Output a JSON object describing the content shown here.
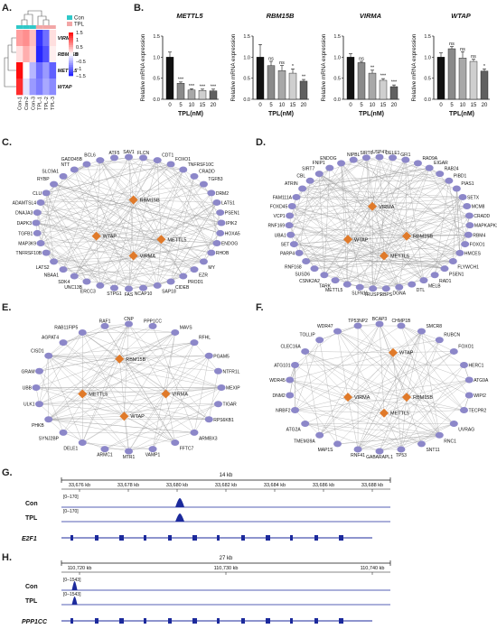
{
  "panels": [
    "A.",
    "B.",
    "C.",
    "D.",
    "E.",
    "F.",
    "G.",
    "H."
  ],
  "heatmap": {
    "legend": [
      {
        "label": "Con",
        "color": "#2fc8c8"
      },
      {
        "label": "TPL",
        "color": "#f2a6a6"
      }
    ],
    "scale_ticks": [
      "1.5",
      "1",
      "0.5",
      "0",
      "−0.5",
      "−1",
      "−1.5"
    ],
    "rows": [
      "VIRMA",
      "RBM15B",
      "METTL5",
      "WTAP"
    ],
    "cols": [
      "Con-1",
      "Con-2",
      "Con-3",
      "TPL-1",
      "TPL-2",
      "TPL-3"
    ],
    "values": [
      [
        0.6,
        0.7,
        0.4,
        -1.4,
        -1.0,
        0.2
      ],
      [
        0.2,
        0.5,
        0.3,
        -1.5,
        -1.2,
        0.1
      ],
      [
        1.5,
        0.0,
        -0.5,
        -1.0,
        -0.7,
        -1.1
      ],
      [
        1.3,
        -0.2,
        -0.7,
        -0.9,
        -0.6,
        -0.8
      ]
    ]
  },
  "chart_data": [
    {
      "type": "bar",
      "title": "METTL5",
      "categories": [
        "0",
        "5",
        "10",
        "15",
        "20"
      ],
      "values": [
        1.0,
        0.38,
        0.22,
        0.21,
        0.2
      ],
      "errors": [
        0.12,
        0.03,
        0.03,
        0.03,
        0.04
      ],
      "sig": [
        "",
        "***",
        "***",
        "***",
        "***"
      ],
      "xlabel": "TPL(nM)",
      "ylabel": "Relative mRNA expression",
      "ylim": [
        0,
        1.5
      ],
      "yticks": [
        "0.0",
        "0.5",
        "1.0",
        "1.5"
      ]
    },
    {
      "type": "bar",
      "title": "RBM15B",
      "categories": [
        "0",
        "5",
        "10",
        "15",
        "20"
      ],
      "values": [
        1.0,
        0.8,
        0.68,
        0.62,
        0.43
      ],
      "errors": [
        0.3,
        0.1,
        0.12,
        0.1,
        0.04
      ],
      "sig": [
        "",
        "ns",
        "ns",
        "*",
        "**"
      ],
      "xlabel": "TPL(nM)",
      "ylabel": "Relative mRNA expression",
      "ylim": [
        0,
        1.5
      ],
      "yticks": [
        "0.0",
        "0.5",
        "1.0",
        "1.5"
      ]
    },
    {
      "type": "bar",
      "title": "VIRMA",
      "categories": [
        "0",
        "5",
        "10",
        "15",
        "20"
      ],
      "values": [
        1.0,
        0.87,
        0.62,
        0.45,
        0.3
      ],
      "errors": [
        0.08,
        0.03,
        0.07,
        0.04,
        0.04
      ],
      "sig": [
        "",
        "ns",
        "**",
        "***",
        "***"
      ],
      "xlabel": "TPL(nM)",
      "ylabel": "Relative mRNA expression",
      "ylim": [
        0,
        1.5
      ],
      "yticks": [
        "0.0",
        "0.5",
        "1.0",
        "1.5"
      ]
    },
    {
      "type": "bar",
      "title": "WTAP",
      "categories": [
        "0",
        "5",
        "10",
        "15",
        "20"
      ],
      "values": [
        1.0,
        1.2,
        0.98,
        0.9,
        0.67
      ],
      "errors": [
        0.1,
        0.05,
        0.15,
        0.05,
        0.05
      ],
      "sig": [
        "",
        "ns",
        "ns",
        "ns",
        "*"
      ],
      "xlabel": "TPL(nM)",
      "ylabel": "Relative mRNA expression",
      "ylim": [
        0,
        1.5
      ],
      "yticks": [
        "0.0",
        "0.5",
        "1.0",
        "1.5"
      ]
    }
  ],
  "networks": {
    "C": {
      "hubs": [
        "RBM15B",
        "WTAP",
        "METTL5",
        "VIRMA"
      ],
      "ring": [
        "SAV1",
        "FLCN",
        "CDT1",
        "FOXO1",
        "TNFRSF10C",
        "CRADD",
        "TGFB3",
        "DRM2",
        "LATS1",
        "PSEN1",
        "IPIK2",
        "HOXA5",
        "ENDOG",
        "RHOB",
        "MY",
        "EZR",
        "PROD1",
        "CIDEB",
        "SAP18",
        "NCAP10",
        "FAS",
        "STPG1",
        "ERCC3",
        "UNC13B",
        "SDK4",
        "NBAA1",
        "LATS2",
        "TNFRSF10B",
        "MAP3K9",
        "TGFB1",
        "DAPK3",
        "DNAJA3",
        "ADAMTSL4",
        "CLU",
        "RYBP",
        "SLC9A1",
        "NTT",
        "GADD45B",
        "BCL6",
        "ATF5"
      ]
    },
    "D": {
      "hubs": [
        "VIRMA",
        "WTAP",
        "RBM15B",
        "METTL5"
      ],
      "ring": [
        "USP47",
        "DELE1",
        "GFI1",
        "RAD9A",
        "EIGAR",
        "RAB24",
        "PIBD1",
        "PIAS1",
        "SETX",
        "MCM8",
        "CRADD",
        "MAPKAPK2",
        "RBM4",
        "FOXO1",
        "HMCES",
        "FLYWCH1",
        "PSEN1",
        "RAD1",
        "MELB",
        "DTL",
        "DGNA",
        "RBPS",
        "TRUSP1",
        "SLFN11",
        "METTL5",
        "TARK",
        "CSNK2A2",
        "SUSD6",
        "RNF168",
        "PARP4",
        "SET",
        "UBA1",
        "RNF169",
        "VCP1",
        "FOXD45",
        "FAM111A",
        "ATRIN",
        "CBL",
        "SIRT7",
        "FNIP1",
        "ENDOG",
        "NIPBL",
        "SIRT6"
      ]
    },
    "E": {
      "hubs": [
        "RBM15B",
        "METTL5",
        "VIRMA",
        "WTAP"
      ],
      "ring": [
        "CNP",
        "PPP1CC",
        "MAVS",
        "RFHL",
        "PGAM5",
        "NTFR1L",
        "MEXIP",
        "TIGAR",
        "RPS6KB1",
        "ARMBX3",
        "FFTC7",
        "VAMP1",
        "MTR1",
        "ARMC1",
        "DELE1",
        "SYNJ2BP",
        "PHKB",
        "ULK1",
        "UBB",
        "GRAM",
        "CISD1",
        "AGPAT4",
        "RAB11FIP5",
        "RAF1"
      ]
    },
    "F": {
      "hubs": [
        "WTAP",
        "RBM15B",
        "VIRMA",
        "METTL5"
      ],
      "ring": [
        "BCAP3",
        "CHMP1B",
        "SMCR8",
        "RUBCN",
        "FOXO1",
        "HERC1",
        "ATG9A",
        "WIPI2",
        "TECPR2",
        "UVRAG",
        "RNC1",
        "SNT11",
        "TP53",
        "GABARAPL1",
        "RNF41",
        "MAP1S",
        "TMEM39A",
        "ATG2A",
        "NRBF2",
        "DNM2",
        "WDR45",
        "ATG101",
        "CLEC16A",
        "TOLLIP",
        "WDR47",
        "TP53NP2"
      ]
    }
  },
  "tracks": {
    "G": {
      "scale": "14 kb",
      "coords": [
        "33,676 kb",
        "33,678 kb",
        "33,680 kb",
        "33,682 kb",
        "33,684 kb",
        "33,686 kb",
        "33,688 kb"
      ],
      "tracks": [
        {
          "label": "Con",
          "range": "[0–170]"
        },
        {
          "label": "TPL",
          "range": "[0–170]"
        }
      ],
      "gene": "E2F1"
    },
    "H": {
      "scale": "27 kb",
      "coords": [
        "110,720 kb",
        "110,730 kb",
        "110,740 kb"
      ],
      "tracks": [
        {
          "label": "Con",
          "range": "[0–1543]"
        },
        {
          "label": "TPL",
          "range": "[0–1543]"
        }
      ],
      "gene": "PPP1CC"
    }
  },
  "colors": {
    "hub": "#e07a2a",
    "node": "#8c87c9",
    "track": "#1c2a9c",
    "bar0": "#111111",
    "bar1": "#8a8a8a",
    "bar2": "#a8a8a8",
    "bar3": "#cfcfcf",
    "bar4": "#606060"
  }
}
